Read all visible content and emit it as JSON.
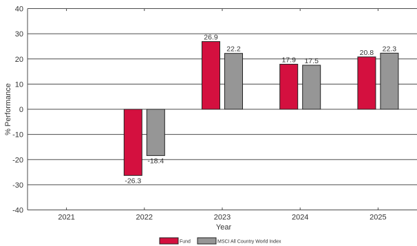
{
  "chart_data": {
    "type": "bar",
    "xlabel": "Year",
    "ylabel": "% Performance",
    "ylim": [
      -40,
      40
    ],
    "yticks": [
      -40,
      -30,
      -20,
      -10,
      0,
      10,
      20,
      30,
      40
    ],
    "grid": "horizontal",
    "legend_position": "bottom",
    "categories": [
      "2021",
      "2022",
      "2023",
      "2024",
      "2025"
    ],
    "series": [
      {
        "name": "Fund",
        "color": "#d4103f",
        "values": [
          null,
          -26.3,
          26.9,
          17.9,
          20.8
        ],
        "labels": [
          "",
          "-26.3",
          "26.9",
          "17.9",
          "20.8"
        ]
      },
      {
        "name": "MSCI All Country World Index",
        "color": "#969696",
        "values": [
          null,
          -18.4,
          22.2,
          17.5,
          22.3
        ],
        "labels": [
          "",
          "-18.4",
          "22.2",
          "17.5",
          "22.3"
        ]
      }
    ]
  }
}
